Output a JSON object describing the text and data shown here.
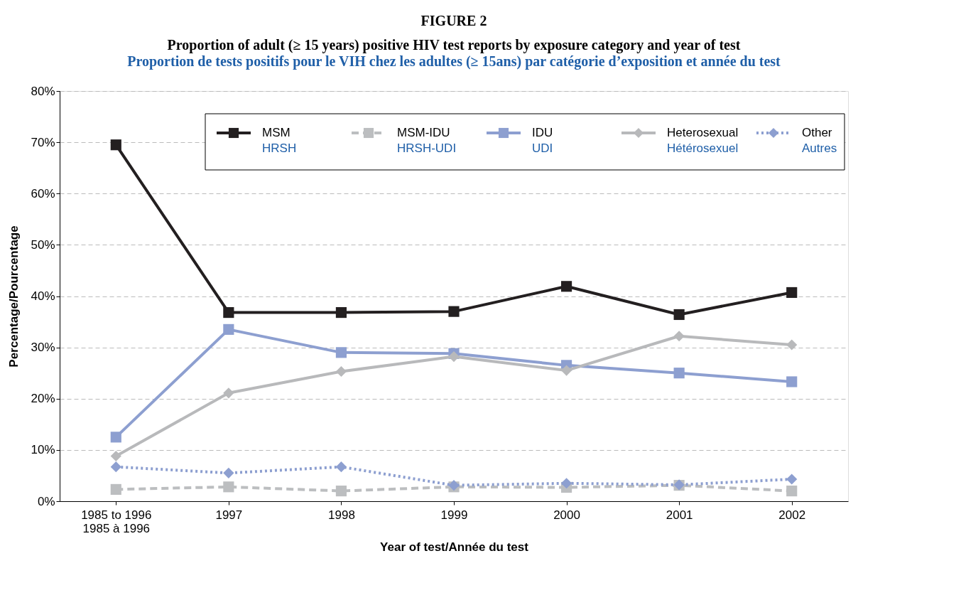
{
  "chart_data": {
    "type": "line",
    "title": "FIGURE 2\nProportion of adult (≥ 15 years) positive HIV test reports by exposure category and year of test",
    "subtitle": "Proportion de tests positifs pour le VIH chez les adultes (≥ 15ans) par catégorie d’exposition et année du test",
    "xlabel": "Year of test/Année du test",
    "ylabel": "Percentage/Pourcentage",
    "categories": [
      "1985 to 1996\n1985 à 1996",
      "1997",
      "1998",
      "1999",
      "2000",
      "2001",
      "2002"
    ],
    "ylim": [
      0,
      80
    ],
    "yticks": [
      {
        "value": 0,
        "label": "0%"
      },
      {
        "value": 10,
        "label": "10%"
      },
      {
        "value": 20,
        "label": "20%"
      },
      {
        "value": 30,
        "label": "30%"
      },
      {
        "value": 40,
        "label": "40%"
      },
      {
        "value": 50,
        "label": "50%"
      },
      {
        "value": 60,
        "label": "60%"
      },
      {
        "value": 70,
        "label": "70%"
      },
      {
        "value": 80,
        "label": "80%"
      }
    ],
    "grid": "y",
    "legend": "top",
    "series": [
      {
        "name": "MSM\nHRSH",
        "color": "#231f20",
        "marker": "square",
        "line_style": "solid",
        "values": [
          69.5,
          36.8,
          36.8,
          37.0,
          41.9,
          36.4,
          40.7
        ]
      },
      {
        "name": "MSM-IDU\nHRSH-UDI",
        "color": "#bcbec0",
        "marker": "square",
        "line_style": "dashed",
        "values": [
          2.3,
          2.8,
          2.0,
          2.8,
          2.7,
          3.1,
          2.0
        ]
      },
      {
        "name": "IDU\nUDI",
        "color": "#8d9fd0",
        "marker": "square",
        "line_style": "solid",
        "values": [
          12.5,
          33.5,
          29.0,
          28.8,
          26.5,
          25.0,
          23.3
        ]
      },
      {
        "name": "Heterosexual\nHétérosexuel",
        "color": "#b8b9bb",
        "marker": "diamond",
        "line_style": "solid",
        "values": [
          8.8,
          21.1,
          25.3,
          28.2,
          25.5,
          32.2,
          30.5
        ]
      },
      {
        "name": "Other\nAutres",
        "color": "#8d9fd0",
        "marker": "diamond",
        "line_style": "dotted",
        "values": [
          6.7,
          5.5,
          6.7,
          3.1,
          3.5,
          3.2,
          4.3
        ]
      }
    ]
  }
}
